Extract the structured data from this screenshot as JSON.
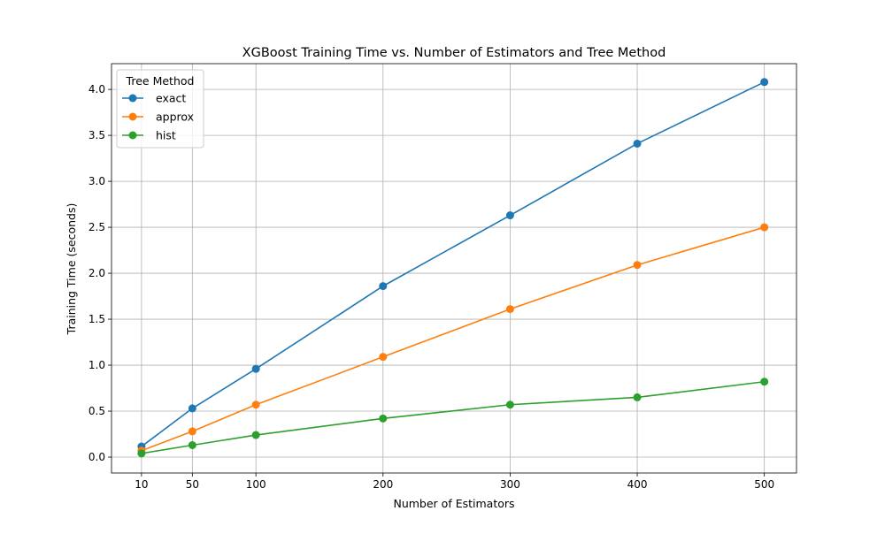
{
  "chart_data": {
    "type": "line",
    "title": "XGBoost Training Time vs. Number of Estimators and Tree Method",
    "xlabel": "Number of Estimators",
    "ylabel": "Training Time (seconds)",
    "x": [
      10,
      50,
      100,
      200,
      300,
      400,
      500
    ],
    "xticks": [
      "10",
      "50",
      "100",
      "200",
      "300",
      "400",
      "500"
    ],
    "yticks": [
      "0.0",
      "0.5",
      "1.0",
      "1.5",
      "2.0",
      "2.5",
      "3.0",
      "3.5",
      "4.0"
    ],
    "xlim": [
      -13.6,
      525.3
    ],
    "ylim": [
      -0.173,
      4.28
    ],
    "grid": true,
    "legend": {
      "title": "Tree Method",
      "placement": "top-left"
    },
    "series": [
      {
        "name": "exact",
        "color": "#1f77b4",
        "values": [
          0.115,
          0.53,
          0.96,
          1.86,
          2.63,
          3.41,
          4.08
        ]
      },
      {
        "name": "approx",
        "color": "#ff7f0e",
        "values": [
          0.07,
          0.28,
          0.57,
          1.09,
          1.61,
          2.09,
          2.5
        ]
      },
      {
        "name": "hist",
        "color": "#2ca02c",
        "values": [
          0.04,
          0.13,
          0.24,
          0.42,
          0.57,
          0.65,
          0.82
        ]
      }
    ]
  }
}
